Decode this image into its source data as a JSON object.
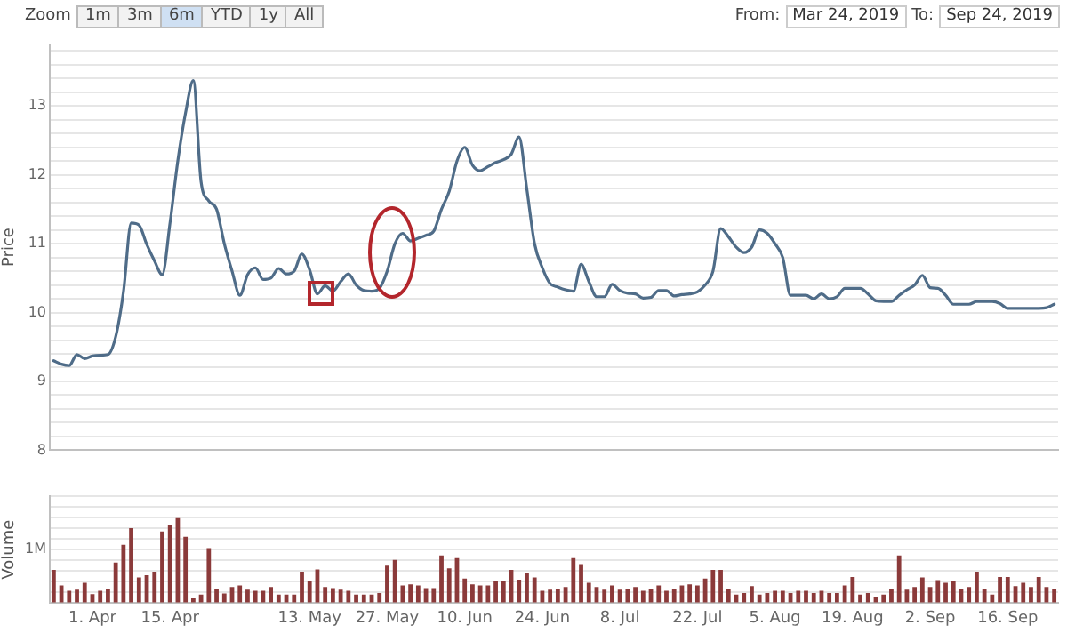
{
  "chart_data": [
    {
      "type": "line",
      "ylabel": "Price",
      "color": "#4f6c88",
      "marker": "none",
      "grid": "y",
      "tick_labels": "y",
      "annotations": [
        "Zoom",
        "1m",
        "3m",
        "6m",
        "YTD",
        "1y",
        "All",
        "From:",
        "Mar 24, 2019",
        "To:",
        "Sep 24, 2019"
      ],
      "categories": [
        null,
        null,
        null,
        null,
        null,
        null,
        null,
        null,
        null,
        null,
        null,
        null,
        null,
        null,
        null,
        null,
        null,
        null,
        null,
        null,
        null,
        null,
        null,
        null,
        null,
        null,
        null,
        null,
        null,
        null,
        null,
        null,
        null,
        null,
        null,
        null,
        null,
        null,
        null,
        null,
        null,
        null,
        null,
        null,
        null,
        null,
        null,
        null,
        null,
        null,
        null,
        null,
        null,
        null,
        null,
        null,
        null,
        null,
        null,
        null,
        null,
        null,
        null,
        null,
        null,
        null,
        null,
        null,
        null,
        null,
        null,
        null,
        null,
        null,
        null,
        null,
        null,
        null,
        null,
        null,
        null,
        null,
        null,
        null,
        null,
        null,
        null,
        null,
        null,
        null,
        null,
        null,
        null,
        null,
        null,
        null,
        null,
        null,
        null,
        null,
        null,
        null,
        null,
        null,
        null,
        null,
        null,
        null,
        null,
        null,
        null,
        null,
        null,
        null,
        null,
        null,
        null,
        null,
        null,
        null,
        null,
        null,
        null,
        null,
        null,
        null,
        null,
        null,
        null,
        null
      ],
      "values": [
        9.3,
        9.25,
        9.23,
        9.39,
        9.33,
        9.37,
        9.38,
        9.39,
        9.65,
        10.3,
        11.3,
        11.27,
        10.99,
        10.75,
        10.55,
        11.3,
        12.2,
        12.9,
        13.37,
        11.9,
        11.62,
        11.5,
        11.0,
        10.6,
        10.25,
        10.55,
        10.65,
        10.48,
        10.5,
        10.64,
        10.56,
        10.6,
        10.85,
        10.62,
        10.27,
        10.39,
        10.31,
        10.45,
        10.56,
        10.4,
        10.32,
        10.31,
        10.35,
        10.6,
        11.0,
        11.15,
        11.04,
        11.08,
        11.12,
        11.18,
        11.5,
        11.76,
        12.2,
        12.4,
        12.14,
        12.06,
        12.12,
        12.18,
        12.22,
        12.3,
        12.55,
        11.8,
        11.0,
        10.65,
        10.42,
        10.37,
        10.33,
        10.31,
        10.7,
        10.45,
        10.23,
        10.23,
        10.41,
        10.32,
        10.28,
        10.27,
        10.21,
        10.22,
        10.32,
        10.32,
        10.24,
        10.26,
        10.27,
        10.3,
        10.4,
        10.6,
        11.22,
        11.1,
        10.95,
        10.87,
        10.95,
        11.2,
        11.15,
        11.0,
        10.8,
        10.25,
        10.25,
        10.25,
        10.2,
        10.27,
        10.2,
        10.23,
        10.35,
        10.35,
        10.35,
        10.27,
        10.17,
        10.16,
        10.16,
        10.25,
        10.33,
        10.4,
        10.54,
        10.36,
        10.35,
        10.25,
        10.12,
        10.12,
        10.12,
        10.16,
        10.16,
        10.16,
        10.13,
        10.06,
        10.06,
        10.06,
        10.06,
        10.06,
        10.07,
        10.12
      ],
      "ylim": [
        8,
        13.9
      ],
      "yticks": [
        8,
        {
          "value": 8.2,
          "label": null
        },
        {
          "value": 8.4,
          "label": null
        },
        {
          "value": 8.6,
          "label": null
        },
        {
          "value": 8.8,
          "label": null
        },
        9,
        {
          "value": 9.2,
          "label": null
        },
        {
          "value": 9.4,
          "label": null
        },
        {
          "value": 9.6,
          "label": null
        },
        {
          "value": 9.8,
          "label": null
        },
        10,
        {
          "value": 10.2,
          "label": null
        },
        {
          "value": 10.4,
          "label": null
        },
        {
          "value": 10.6,
          "label": null
        },
        {
          "value": 10.8,
          "label": null
        },
        11,
        {
          "value": 11.2,
          "label": null
        },
        {
          "value": 11.4,
          "label": null
        },
        {
          "value": 11.6,
          "label": null
        },
        {
          "value": 11.8,
          "label": null
        },
        12,
        {
          "value": 12.2,
          "label": null
        },
        {
          "value": 12.4,
          "label": null
        },
        {
          "value": 12.6,
          "label": null
        },
        {
          "value": 12.8,
          "label": null
        },
        13,
        {
          "value": 13.2,
          "label": null
        },
        {
          "value": 13.4,
          "label": null
        },
        {
          "value": 13.6,
          "label": null
        },
        {
          "value": 13.8,
          "label": null
        }
      ]
    },
    {
      "type": "bar",
      "ylabel": "Volume",
      "color": "#8b3a3a",
      "grid": "y",
      "categories": [
        null,
        null,
        null,
        null,
        null,
        "1. Apr",
        null,
        null,
        null,
        null,
        null,
        null,
        null,
        null,
        null,
        "15. Apr",
        null,
        null,
        null,
        null,
        null,
        null,
        null,
        null,
        null,
        null,
        null,
        null,
        null,
        null,
        null,
        null,
        null,
        "13. May",
        null,
        null,
        null,
        null,
        null,
        null,
        null,
        null,
        null,
        "27. May",
        null,
        null,
        null,
        null,
        null,
        null,
        null,
        null,
        null,
        "10. Jun",
        null,
        null,
        null,
        null,
        null,
        null,
        null,
        null,
        null,
        "24. Jun",
        null,
        null,
        null,
        null,
        null,
        null,
        null,
        null,
        null,
        "8. Jul",
        null,
        null,
        null,
        null,
        null,
        null,
        null,
        null,
        null,
        "22. Jul",
        null,
        null,
        null,
        null,
        null,
        null,
        null,
        null,
        null,
        "5. Aug",
        null,
        null,
        null,
        null,
        null,
        null,
        null,
        null,
        null,
        "19. Aug",
        null,
        null,
        null,
        null,
        null,
        null,
        null,
        null,
        null,
        "2. Sep",
        null,
        null,
        null,
        null,
        null,
        null,
        null,
        null,
        null,
        "16. Sep",
        null,
        null,
        null,
        null,
        null,
        null
      ],
      "values": [
        620000,
        330000,
        230000,
        250000,
        380000,
        170000,
        230000,
        270000,
        760000,
        1090000,
        1400000,
        480000,
        520000,
        590000,
        1340000,
        1450000,
        1590000,
        1240000,
        90000,
        160000,
        1030000,
        270000,
        180000,
        300000,
        330000,
        250000,
        230000,
        230000,
        300000,
        160000,
        160000,
        160000,
        590000,
        410000,
        630000,
        300000,
        280000,
        250000,
        230000,
        160000,
        160000,
        160000,
        190000,
        700000,
        810000,
        330000,
        350000,
        330000,
        280000,
        280000,
        890000,
        650000,
        840000,
        460000,
        350000,
        330000,
        330000,
        410000,
        410000,
        620000,
        440000,
        570000,
        480000,
        230000,
        250000,
        270000,
        300000,
        840000,
        730000,
        380000,
        300000,
        250000,
        330000,
        250000,
        270000,
        300000,
        230000,
        270000,
        330000,
        230000,
        270000,
        330000,
        350000,
        330000,
        460000,
        620000,
        620000,
        270000,
        160000,
        190000,
        320000,
        160000,
        190000,
        230000,
        230000,
        190000,
        230000,
        230000,
        190000,
        230000,
        190000,
        190000,
        330000,
        490000,
        160000,
        190000,
        120000,
        160000,
        270000,
        890000,
        250000,
        300000,
        480000,
        300000,
        430000,
        380000,
        410000,
        270000,
        300000,
        590000,
        270000,
        160000,
        490000,
        490000,
        320000,
        380000,
        300000,
        490000,
        300000,
        270000
      ],
      "ylim": [
        0,
        2000000
      ],
      "yticks": [
        {
          "value": 0,
          "label": null
        },
        {
          "value": 200000,
          "label": null
        },
        {
          "value": 400000,
          "label": null
        },
        {
          "value": 600000,
          "label": null
        },
        {
          "value": 800000,
          "label": null
        },
        {
          "value": 1000000,
          "label": "1M"
        },
        {
          "value": 1200000,
          "label": null
        },
        {
          "value": 1400000,
          "label": null
        },
        {
          "value": 1600000,
          "label": null
        },
        {
          "value": 1800000,
          "label": null
        },
        {
          "value": 2000000,
          "label": null
        }
      ]
    }
  ]
}
